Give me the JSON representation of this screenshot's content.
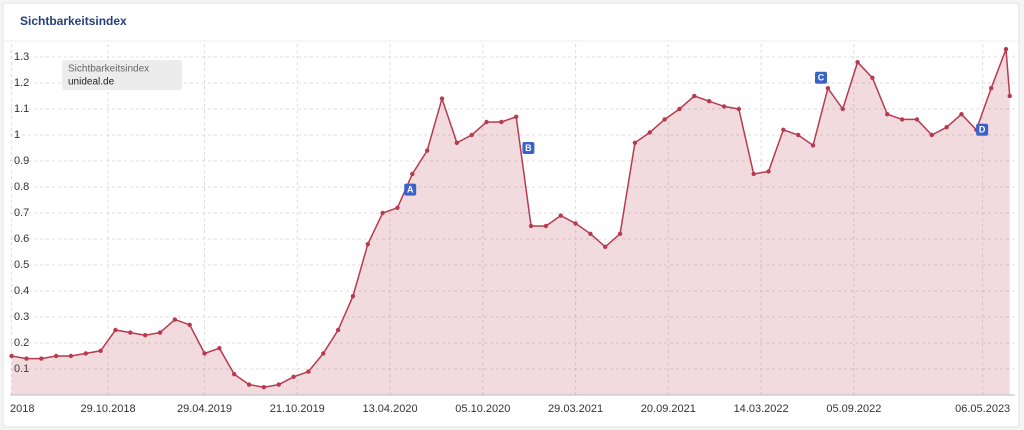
{
  "chart_data": {
    "type": "area",
    "title": "Sichtbarkeitsindex",
    "legend_title": "Sichtbarkeitsindex",
    "x": [
      "30.04.2018",
      "28.05.2018",
      "25.06.2018",
      "23.07.2018",
      "20.08.2018",
      "17.09.2018",
      "15.10.2018",
      "12.11.2018",
      "10.12.2018",
      "07.01.2019",
      "04.02.2019",
      "04.03.2019",
      "01.04.2019",
      "29.04.2019",
      "27.05.2019",
      "24.06.2019",
      "22.07.2019",
      "19.08.2019",
      "16.09.2019",
      "14.10.2019",
      "11.11.2019",
      "09.12.2019",
      "06.01.2020",
      "03.02.2020",
      "02.03.2020",
      "30.03.2020",
      "27.04.2020",
      "25.05.2020",
      "22.06.2020",
      "20.07.2020",
      "17.08.2020",
      "14.09.2020",
      "12.10.2020",
      "09.11.2020",
      "07.12.2020",
      "04.01.2021",
      "01.02.2021",
      "01.03.2021",
      "29.03.2021",
      "26.04.2021",
      "24.05.2021",
      "21.06.2021",
      "19.07.2021",
      "16.08.2021",
      "13.09.2021",
      "11.10.2021",
      "08.11.2021",
      "06.12.2021",
      "03.01.2022",
      "31.01.2022",
      "28.02.2022",
      "28.03.2022",
      "25.04.2022",
      "23.05.2022",
      "20.06.2022",
      "18.07.2022",
      "15.08.2022",
      "12.09.2022",
      "10.10.2022",
      "07.11.2022",
      "05.12.2022",
      "02.01.2023",
      "30.01.2023",
      "27.02.2023",
      "27.03.2023",
      "24.04.2023",
      "22.05.2023",
      "19.06.2023",
      "26.06.2023"
    ],
    "series": [
      {
        "name": "unideal.de",
        "color": "#b83a4f",
        "values": [
          0.15,
          0.14,
          0.14,
          0.15,
          0.15,
          0.16,
          0.17,
          0.25,
          0.24,
          0.23,
          0.24,
          0.29,
          0.27,
          0.16,
          0.18,
          0.08,
          0.04,
          0.03,
          0.04,
          0.07,
          0.09,
          0.16,
          0.25,
          0.38,
          0.58,
          0.7,
          0.72,
          0.85,
          0.94,
          1.14,
          0.97,
          1.0,
          1.05,
          1.05,
          1.07,
          0.65,
          0.65,
          0.69,
          0.66,
          0.62,
          0.57,
          0.62,
          0.97,
          1.01,
          1.06,
          1.1,
          1.15,
          1.13,
          1.11,
          1.1,
          0.85,
          0.86,
          1.02,
          1.0,
          0.96,
          1.18,
          1.1,
          1.28,
          1.22,
          1.08,
          1.06,
          1.06,
          1.0,
          1.03,
          1.08,
          1.02,
          1.18,
          1.33,
          1.15
        ]
      }
    ],
    "annotations": [
      {
        "label": "A",
        "x": "21.05.2020",
        "y": 0.79
      },
      {
        "label": "B",
        "x": "30.12.2020",
        "y": 0.95
      },
      {
        "label": "C",
        "x": "05.07.2022",
        "y": 1.22
      },
      {
        "label": "D",
        "x": "05.05.2023",
        "y": 1.02
      }
    ],
    "xlim": [
      "27.04.2018",
      "06.07.2023"
    ],
    "xticks": [
      {
        "value": "30.04.2018",
        "label": "2018"
      },
      "29.10.2018",
      "29.04.2019",
      "21.10.2019",
      "13.04.2020",
      "05.10.2020",
      "29.03.2021",
      "20.09.2021",
      "14.03.2022",
      "05.09.2022",
      "06.05.2023"
    ],
    "ylim": [
      0,
      1.35
    ],
    "yticks": [
      0.1,
      0.2,
      0.3,
      0.4,
      0.5,
      0.6,
      0.7,
      0.8,
      0.9,
      1,
      1.1,
      1.2,
      1.3
    ],
    "grid": true
  }
}
